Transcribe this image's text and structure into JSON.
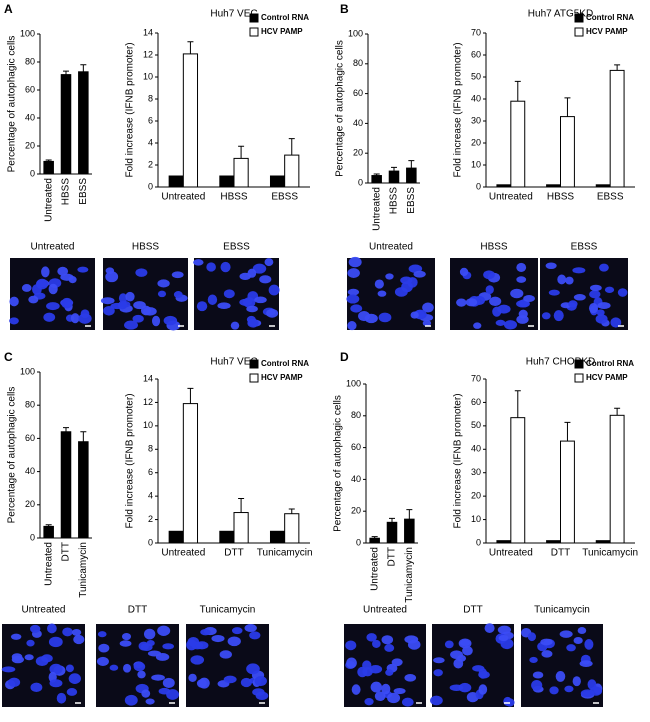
{
  "panels": [
    {
      "letter": "A",
      "title": "Huh7 VEC",
      "image_labels": [
        "Untreated",
        "HBSS",
        "EBSS"
      ]
    },
    {
      "letter": "B",
      "title": "Huh7 ATG5KD",
      "image_labels": [
        "Untreated",
        "HBSS",
        "EBSS"
      ]
    },
    {
      "letter": "C",
      "title": "Huh7 VEC",
      "image_labels": [
        "Untreated",
        "DTT",
        "Tunicamycin"
      ]
    },
    {
      "letter": "D",
      "title": "Huh7 CHOPKD",
      "image_labels": [
        "Untreated",
        "DTT",
        "Tunicamycin"
      ]
    }
  ],
  "chart_data": [
    {
      "type": "bar",
      "ylabel": "Percentage of autophagic cells",
      "categories": [
        "Untreated",
        "HBSS",
        "EBSS"
      ],
      "values": [
        9,
        71,
        73
      ],
      "errors": [
        1,
        2.5,
        5
      ],
      "color": "#000000",
      "ylim": [
        0,
        100
      ],
      "yticks": [
        0,
        20,
        40,
        60,
        80,
        100
      ]
    },
    {
      "type": "bar",
      "ylabel": "Fold increase (IFNB promoter)",
      "categories": [
        "Untreated",
        "HBSS",
        "EBSS"
      ],
      "series": [
        {
          "name": "Control RNA",
          "color": "#000000",
          "values": [
            1,
            1,
            1
          ]
        },
        {
          "name": "HCV PAMP",
          "color": "#ffffff",
          "values": [
            12.1,
            2.6,
            2.9
          ],
          "errors": [
            1.1,
            1.1,
            1.5
          ]
        }
      ],
      "ylim": [
        0,
        14
      ],
      "yticks": [
        0,
        2,
        4,
        6,
        8,
        10,
        12,
        14
      ],
      "legend": "top-right"
    },
    {
      "type": "bar",
      "ylabel": "Percentage of autophagic cells",
      "categories": [
        "Untreated",
        "HBSS",
        "EBSS"
      ],
      "values": [
        5,
        8,
        10
      ],
      "errors": [
        1,
        2.5,
        5
      ],
      "color": "#000000",
      "ylim": [
        0,
        100
      ],
      "yticks": [
        0,
        20,
        40,
        60,
        80,
        100
      ]
    },
    {
      "type": "bar",
      "ylabel": "Fold increase (IFNB promoter)",
      "categories": [
        "Untreated",
        "HBSS",
        "EBSS"
      ],
      "series": [
        {
          "name": "Control RNA",
          "color": "#000000",
          "values": [
            1,
            1,
            1
          ]
        },
        {
          "name": "HCV PAMP",
          "color": "#ffffff",
          "values": [
            39,
            32,
            53
          ],
          "errors": [
            9,
            8.5,
            2.5
          ]
        }
      ],
      "ylim": [
        0,
        70
      ],
      "yticks": [
        0,
        10,
        20,
        30,
        40,
        50,
        60,
        70
      ],
      "legend": "top-right"
    },
    {
      "type": "bar",
      "ylabel": "Percentage of autophagic cells",
      "categories": [
        "Untreated",
        "DTT",
        "Tunicamycin"
      ],
      "values": [
        7,
        64,
        58
      ],
      "errors": [
        1,
        2.5,
        6
      ],
      "color": "#000000",
      "ylim": [
        0,
        100
      ],
      "yticks": [
        0,
        20,
        40,
        60,
        80,
        100
      ]
    },
    {
      "type": "bar",
      "ylabel": "Fold increase (IFNB promoter)",
      "categories": [
        "Untreated",
        "DTT",
        "Tunicamycin"
      ],
      "series": [
        {
          "name": "Control RNA",
          "color": "#000000",
          "values": [
            1,
            1,
            1
          ]
        },
        {
          "name": "HCV PAMP",
          "color": "#ffffff",
          "values": [
            11.9,
            2.6,
            2.5
          ],
          "errors": [
            1.3,
            1.2,
            0.4
          ]
        }
      ],
      "ylim": [
        0,
        14
      ],
      "yticks": [
        0,
        2,
        4,
        6,
        8,
        10,
        12,
        14
      ],
      "legend": "top-right"
    },
    {
      "type": "bar",
      "ylabel": "Percentage of autophagic cells",
      "categories": [
        "Untreated",
        "DTT",
        "Tunicamycin"
      ],
      "values": [
        3,
        13,
        15
      ],
      "errors": [
        1,
        2.5,
        6
      ],
      "color": "#000000",
      "ylim": [
        0,
        100
      ],
      "yticks": [
        0,
        20,
        40,
        60,
        80,
        100
      ]
    },
    {
      "type": "bar",
      "ylabel": "Fold increase (IFNB promoter)",
      "categories": [
        "Untreated",
        "DTT",
        "Tunicamycin"
      ],
      "series": [
        {
          "name": "Control RNA",
          "color": "#000000",
          "values": [
            1,
            1,
            1
          ]
        },
        {
          "name": "HCV PAMP",
          "color": "#ffffff",
          "values": [
            53.5,
            43.5,
            54.5
          ],
          "errors": [
            11.5,
            8,
            3
          ]
        }
      ],
      "ylim": [
        0,
        70
      ],
      "yticks": [
        0,
        10,
        20,
        30,
        40,
        50,
        60,
        70
      ],
      "legend": "top-right"
    }
  ]
}
